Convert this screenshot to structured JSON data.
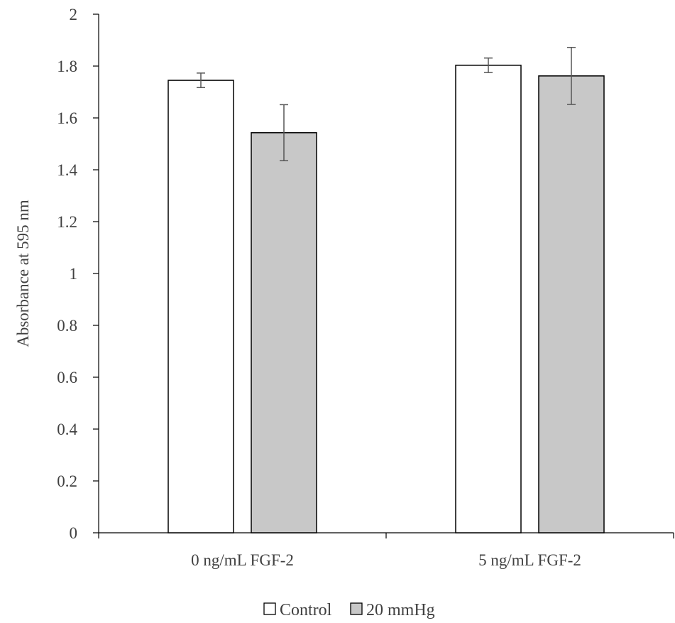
{
  "chart_data": {
    "type": "bar",
    "title": "",
    "xlabel": "",
    "ylabel": "Absorbance at 595 nm",
    "ylim": [
      0,
      2
    ],
    "yticks": [
      0,
      0.2,
      0.4,
      0.6,
      0.8,
      1,
      1.2,
      1.4,
      1.6,
      1.8,
      2
    ],
    "categories": [
      "0 ng/mL FGF-2",
      "5 ng/mL FGF-2"
    ],
    "series": [
      {
        "name": "Control",
        "values": [
          1.745,
          1.803
        ],
        "errors": [
          0.028,
          0.028
        ],
        "color": "#ffffff"
      },
      {
        "name": "20 mmHg",
        "values": [
          1.543,
          1.762
        ],
        "errors": [
          0.108,
          0.11
        ],
        "color": "#c8c8c8"
      }
    ],
    "grid": false,
    "legend": "bottom"
  }
}
